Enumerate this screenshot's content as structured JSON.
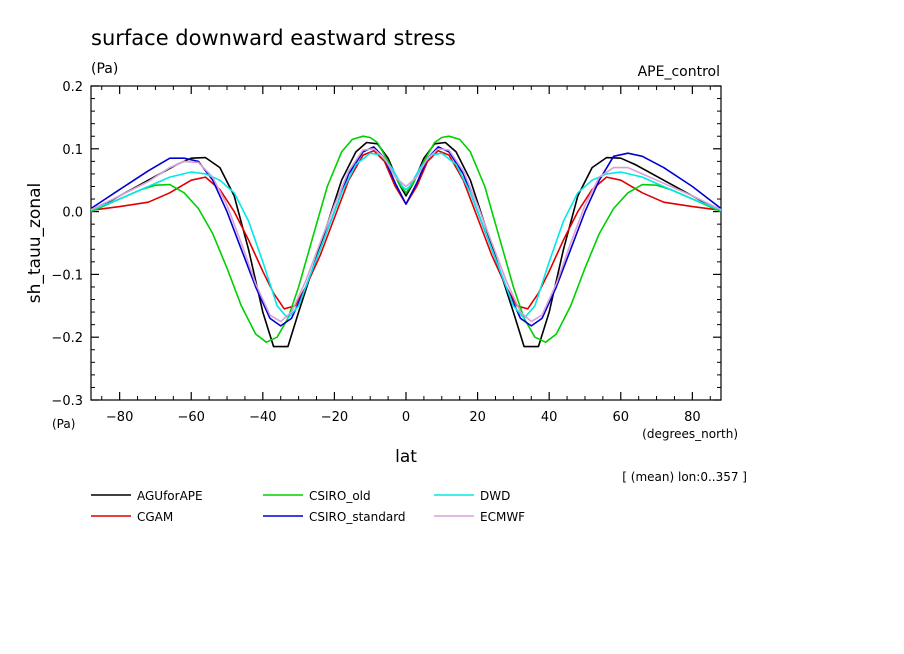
{
  "chart_data": {
    "type": "line",
    "title": "surface downward eastward stress",
    "title_units": "(Pa)",
    "experiment": "APE_control",
    "xlabel": "lat",
    "xunits": "(degrees_north)",
    "ylabel": "sh_tauu_zonal",
    "yunits": "(Pa)",
    "footnote": "[ (mean) lon:0..357 ]",
    "xlim": [
      -88,
      88
    ],
    "ylim": [
      -0.3,
      0.2
    ],
    "x_ticks": [
      -80,
      -60,
      -40,
      -20,
      0,
      20,
      40,
      60,
      80
    ],
    "x_tick_labels": [
      "−80",
      "−60",
      "−40",
      "−20",
      "0",
      "20",
      "40",
      "60",
      "80"
    ],
    "y_ticks": [
      -0.3,
      -0.2,
      -0.1,
      0.0,
      0.1,
      0.2
    ],
    "y_tick_labels": [
      "−0.3",
      "−0.2",
      "−0.1",
      "0.0",
      "0.1",
      "0.2"
    ],
    "grid": false,
    "legend_position": "bottom",
    "series": [
      {
        "name": "AGUforAPE",
        "color": "#000000",
        "x": [
          -88,
          -80,
          -72,
          -64,
          -60,
          -56,
          -52,
          -48,
          -44,
          -40,
          -37,
          -33,
          -30,
          -26,
          -22,
          -18,
          -14,
          -11,
          -8,
          -5,
          -2,
          0,
          2,
          5,
          8,
          11,
          14,
          18,
          22,
          26,
          30,
          33,
          37,
          40,
          44,
          48,
          52,
          56,
          60,
          64,
          72,
          80,
          88
        ],
        "y": [
          0.0,
          0.025,
          0.05,
          0.075,
          0.085,
          0.086,
          0.07,
          0.025,
          -0.06,
          -0.16,
          -0.215,
          -0.215,
          -0.16,
          -0.09,
          -0.02,
          0.05,
          0.095,
          0.11,
          0.108,
          0.085,
          0.045,
          0.025,
          0.045,
          0.085,
          0.108,
          0.11,
          0.095,
          0.05,
          -0.02,
          -0.09,
          -0.16,
          -0.215,
          -0.215,
          -0.16,
          -0.06,
          0.025,
          0.07,
          0.086,
          0.085,
          0.075,
          0.05,
          0.025,
          0.0
        ]
      },
      {
        "name": "CGAM",
        "color": "#e00000",
        "x": [
          -88,
          -80,
          -72,
          -66,
          -60,
          -56,
          -52,
          -48,
          -44,
          -40,
          -37,
          -34,
          -31,
          -28,
          -24,
          -20,
          -16,
          -12,
          -9,
          -6,
          -3,
          0,
          3,
          6,
          9,
          12,
          16,
          20,
          24,
          28,
          31,
          34,
          37,
          40,
          44,
          48,
          52,
          56,
          60,
          66,
          72,
          80,
          88
        ],
        "y": [
          0.002,
          0.008,
          0.015,
          0.03,
          0.05,
          0.055,
          0.035,
          0.0,
          -0.045,
          -0.095,
          -0.13,
          -0.155,
          -0.15,
          -0.12,
          -0.07,
          -0.01,
          0.05,
          0.09,
          0.097,
          0.08,
          0.04,
          0.012,
          0.04,
          0.08,
          0.097,
          0.09,
          0.05,
          -0.01,
          -0.07,
          -0.12,
          -0.15,
          -0.155,
          -0.13,
          -0.095,
          -0.045,
          0.0,
          0.035,
          0.055,
          0.05,
          0.03,
          0.015,
          0.008,
          0.002
        ]
      },
      {
        "name": "CSIRO_old",
        "color": "#00d000",
        "x": [
          -88,
          -80,
          -74,
          -70,
          -66,
          -62,
          -58,
          -54,
          -50,
          -46,
          -42,
          -39,
          -36,
          -33,
          -30,
          -26,
          -22,
          -18,
          -15,
          -12,
          -10,
          -8,
          -5,
          -2,
          0,
          2,
          5,
          8,
          10,
          12,
          15,
          18,
          22,
          26,
          30,
          33,
          36,
          39,
          42,
          46,
          50,
          54,
          58,
          62,
          66,
          70,
          74,
          80,
          88
        ],
        "y": [
          0.0,
          0.02,
          0.035,
          0.042,
          0.043,
          0.03,
          0.005,
          -0.035,
          -0.09,
          -0.15,
          -0.195,
          -0.208,
          -0.2,
          -0.17,
          -0.12,
          -0.04,
          0.04,
          0.095,
          0.115,
          0.12,
          0.118,
          0.11,
          0.08,
          0.045,
          0.03,
          0.045,
          0.08,
          0.11,
          0.118,
          0.12,
          0.115,
          0.095,
          0.04,
          -0.04,
          -0.12,
          -0.17,
          -0.2,
          -0.208,
          -0.195,
          -0.15,
          -0.09,
          -0.035,
          0.005,
          0.03,
          0.043,
          0.042,
          0.035,
          0.02,
          0.0
        ]
      },
      {
        "name": "CSIRO_standard",
        "color": "#0000d0",
        "x": [
          -88,
          -80,
          -72,
          -66,
          -62,
          -58,
          -54,
          -50,
          -46,
          -42,
          -38,
          -35,
          -32,
          -28,
          -24,
          -20,
          -16,
          -12,
          -9,
          -6,
          -3,
          0,
          3,
          6,
          9,
          12,
          16,
          20,
          24,
          28,
          32,
          35,
          38,
          42,
          46,
          50,
          54,
          58,
          62,
          66,
          72,
          80,
          88
        ],
        "y": [
          0.005,
          0.035,
          0.065,
          0.085,
          0.085,
          0.08,
          0.05,
          0.0,
          -0.06,
          -0.12,
          -0.17,
          -0.182,
          -0.17,
          -0.12,
          -0.06,
          0.0,
          0.06,
          0.095,
          0.103,
          0.085,
          0.045,
          0.012,
          0.045,
          0.085,
          0.103,
          0.095,
          0.06,
          0.0,
          -0.06,
          -0.12,
          -0.17,
          -0.182,
          -0.17,
          -0.12,
          -0.06,
          0.0,
          0.05,
          0.088,
          0.093,
          0.088,
          0.07,
          0.04,
          0.005
        ]
      },
      {
        "name": "DWD",
        "color": "#00e8e8",
        "x": [
          -88,
          -80,
          -72,
          -66,
          -60,
          -56,
          -52,
          -48,
          -44,
          -40,
          -36,
          -33,
          -30,
          -26,
          -22,
          -18,
          -14,
          -10,
          -7,
          -4,
          -1,
          0,
          1,
          4,
          7,
          10,
          14,
          18,
          22,
          26,
          30,
          33,
          36,
          40,
          44,
          48,
          52,
          56,
          60,
          66,
          72,
          80,
          88
        ],
        "y": [
          0.002,
          0.02,
          0.04,
          0.055,
          0.063,
          0.06,
          0.05,
          0.03,
          -0.015,
          -0.08,
          -0.15,
          -0.17,
          -0.15,
          -0.09,
          -0.03,
          0.03,
          0.075,
          0.093,
          0.09,
          0.07,
          0.04,
          0.035,
          0.04,
          0.07,
          0.09,
          0.093,
          0.075,
          0.03,
          -0.03,
          -0.09,
          -0.15,
          -0.17,
          -0.15,
          -0.08,
          -0.015,
          0.03,
          0.05,
          0.06,
          0.063,
          0.055,
          0.04,
          0.02,
          0.002
        ]
      },
      {
        "name": "ECMWF",
        "color": "#d8a0d8",
        "x": [
          -88,
          -80,
          -72,
          -66,
          -62,
          -58,
          -54,
          -50,
          -46,
          -42,
          -38,
          -35,
          -32,
          -28,
          -24,
          -20,
          -16,
          -12,
          -9,
          -6,
          -3,
          0,
          3,
          6,
          9,
          12,
          16,
          20,
          24,
          28,
          32,
          35,
          38,
          42,
          46,
          50,
          54,
          58,
          62,
          66,
          72,
          80,
          88
        ],
        "y": [
          0.003,
          0.025,
          0.048,
          0.07,
          0.08,
          0.078,
          0.055,
          0.01,
          -0.05,
          -0.115,
          -0.165,
          -0.175,
          -0.16,
          -0.11,
          -0.05,
          0.01,
          0.065,
          0.098,
          0.1,
          0.085,
          0.055,
          0.04,
          0.055,
          0.085,
          0.1,
          0.098,
          0.065,
          0.01,
          -0.05,
          -0.11,
          -0.16,
          -0.175,
          -0.165,
          -0.115,
          -0.05,
          0.01,
          0.055,
          0.07,
          0.07,
          0.06,
          0.045,
          0.025,
          0.003
        ]
      }
    ]
  }
}
